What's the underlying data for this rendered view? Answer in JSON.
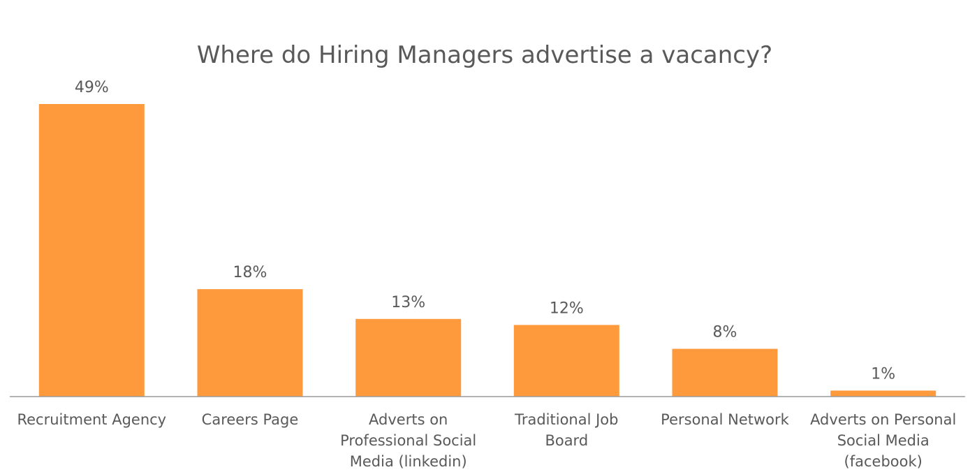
{
  "chart_data": {
    "type": "bar",
    "title": "Where do Hiring Managers advertise a vacancy?",
    "categories": [
      "Recruitment Agency",
      "Careers Page",
      "Adverts on Professional Social Media (linkedin)",
      "Traditional Job Board",
      "Personal Network",
      "Adverts on Personal Social Media (facebook)"
    ],
    "category_lines": [
      [
        "Recruitment Agency"
      ],
      [
        "Careers Page"
      ],
      [
        "Adverts on",
        "Professional Social",
        "Media (linkedin)"
      ],
      [
        "Traditional Job",
        "Board"
      ],
      [
        "Personal Network"
      ],
      [
        "Adverts on Personal",
        "Social Media",
        "(facebook)"
      ]
    ],
    "values": [
      49,
      18,
      13,
      12,
      8,
      1
    ],
    "data_labels": [
      "49%",
      "18%",
      "13%",
      "12%",
      "8%",
      "1%"
    ],
    "xlabel": "",
    "ylabel": "",
    "ylim": [
      0,
      49
    ],
    "grid": false,
    "legend": "none",
    "bar_color": "#FF9A3C",
    "axis_color": "#9a9a9a",
    "text_color": "#595959"
  }
}
